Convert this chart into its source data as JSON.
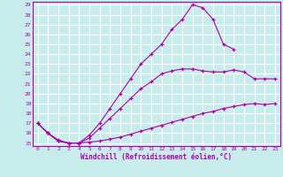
{
  "xlabel": "Windchill (Refroidissement éolien,°C)",
  "background_color": "#c8ecec",
  "grid_color": "#ffffff",
  "line_color": "#aa00aa",
  "x_values": [
    0,
    1,
    2,
    3,
    4,
    5,
    6,
    7,
    8,
    9,
    10,
    11,
    12,
    13,
    14,
    15,
    16,
    17,
    18,
    19,
    20,
    21,
    22,
    23
  ],
  "line1": [
    17.0,
    16.0,
    15.2,
    15.0,
    15.0,
    15.1,
    15.2,
    15.4,
    15.6,
    15.9,
    16.2,
    16.5,
    16.8,
    17.1,
    17.4,
    17.7,
    18.0,
    18.2,
    18.5,
    18.7,
    18.9,
    19.0,
    18.9,
    19.0
  ],
  "line2": [
    17.0,
    16.0,
    15.2,
    15.0,
    15.0,
    15.5,
    16.5,
    17.5,
    18.5,
    19.5,
    20.5,
    21.2,
    22.0,
    22.3,
    22.5,
    22.5,
    22.3,
    22.2,
    22.2,
    22.4,
    22.2,
    21.5,
    21.5,
    21.5
  ],
  "line3": [
    17.0,
    16.0,
    15.3,
    15.0,
    15.0,
    15.8,
    17.0,
    18.5,
    20.0,
    21.5,
    23.0,
    24.0,
    25.0,
    26.5,
    27.5,
    29.0,
    28.7,
    27.5,
    25.0,
    24.5,
    null,
    null,
    null,
    null
  ],
  "ylim": [
    15,
    29
  ],
  "xlim": [
    0,
    23
  ],
  "yticks": [
    15,
    16,
    17,
    18,
    19,
    20,
    21,
    22,
    23,
    24,
    25,
    26,
    27,
    28,
    29
  ],
  "xticks": [
    0,
    1,
    2,
    3,
    4,
    5,
    6,
    7,
    8,
    9,
    10,
    11,
    12,
    13,
    14,
    15,
    16,
    17,
    18,
    19,
    20,
    21,
    22,
    23
  ]
}
